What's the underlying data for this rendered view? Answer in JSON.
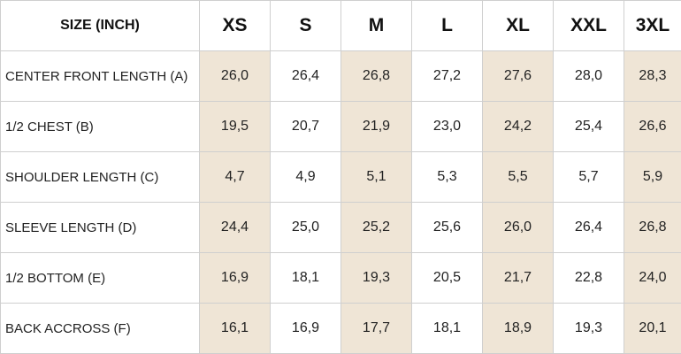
{
  "table": {
    "header": [
      "SIZE (INCH)",
      "XS",
      "S",
      "M",
      "L",
      "XL",
      "XXL",
      "3XL"
    ],
    "rows": [
      [
        "CENTER FRONT LENGTH (A)",
        "26,0",
        "26,4",
        "26,8",
        "27,2",
        "27,6",
        "28,0",
        "28,3"
      ],
      [
        "1/2 CHEST (B)",
        "19,5",
        "20,7",
        "21,9",
        "23,0",
        "24,2",
        "25,4",
        "26,6"
      ],
      [
        "SHOULDER LENGTH (C)",
        "4,7",
        "4,9",
        "5,1",
        "5,3",
        "5,5",
        "5,7",
        "5,9"
      ],
      [
        "SLEEVE LENGTH (D)",
        "24,4",
        "25,0",
        "25,2",
        "25,6",
        "26,0",
        "26,4",
        "26,8"
      ],
      [
        "1/2 BOTTOM (E)",
        "16,9",
        "18,1",
        "19,3",
        "20,5",
        "21,7",
        "22,8",
        "24,0"
      ],
      [
        "BACK ACCROSS (F)",
        "16,1",
        "16,9",
        "17,7",
        "18,1",
        "18,9",
        "19,3",
        "20,1"
      ]
    ]
  }
}
